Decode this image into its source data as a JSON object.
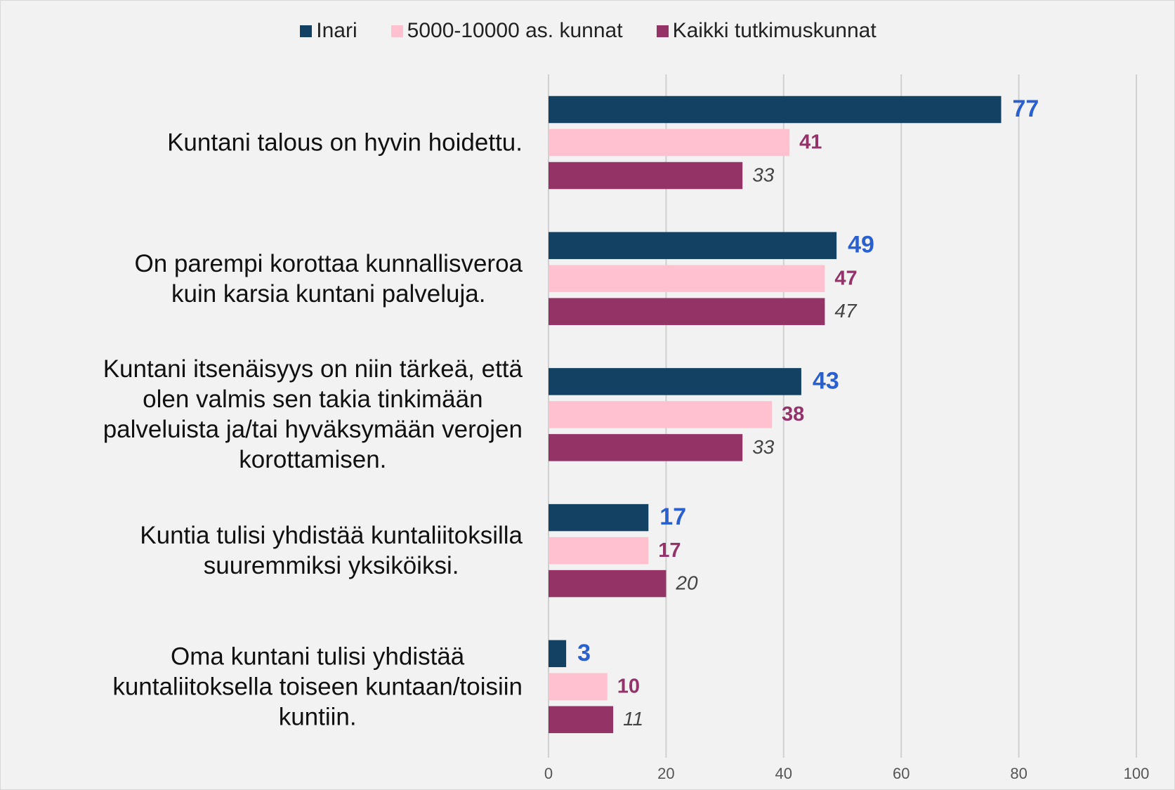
{
  "chart_data": {
    "type": "barh",
    "categories": [
      "Kuntani talous on hyvin hoidettu.",
      "On parempi korottaa kunnallisveroa\nkuin karsia kuntani palveluja.",
      "Kuntani itsenäisyys on niin tärkeä, että\nolen valmis sen takia tinkimään\npalveluista ja/tai hyväksymään verojen\nkorottamisen.",
      "Kuntia tulisi yhdistää kuntaliitoksilla\nsuuremmiksi yksiköiksi.",
      "Oma kuntani tulisi yhdistää\nkuntaliitoksella toiseen kuntaan/toisiin\nkuntiin."
    ],
    "series": [
      {
        "name": "Inari",
        "color": "#124163",
        "label_color": "#2a5fcf",
        "values": [
          77,
          49,
          43,
          17,
          3
        ]
      },
      {
        "name": "5000-10000 as. kunnat",
        "color": "#ffc1cf",
        "label_color": "#93336a",
        "values": [
          41,
          47,
          38,
          17,
          10
        ]
      },
      {
        "name": "Kaikki tutkimuskunnat",
        "color": "#943366",
        "label_color": "#444444",
        "values": [
          33,
          47,
          33,
          20,
          11
        ]
      }
    ],
    "xlim": [
      0,
      100
    ],
    "xticks": [
      0,
      20,
      40,
      60,
      80,
      100
    ],
    "grid": true,
    "legend": "top"
  }
}
